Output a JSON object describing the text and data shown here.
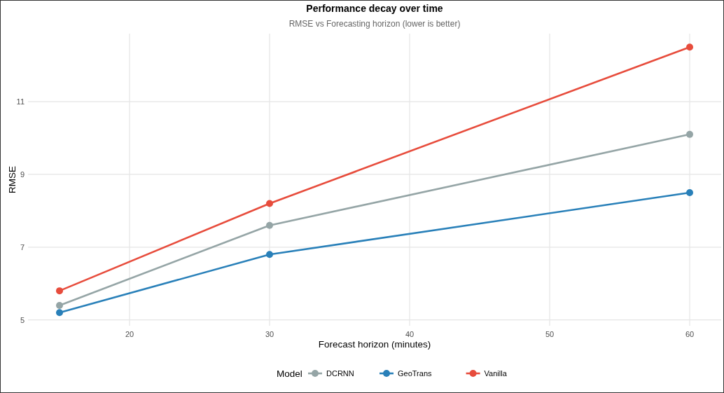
{
  "chart_data": {
    "type": "line",
    "title": "Performance decay over time",
    "subtitle": "RMSE vs Forecasting horizon (lower is better)",
    "xlabel": "Forecast horizon (minutes)",
    "ylabel": "RMSE",
    "legend_title": "Model",
    "x": [
      15,
      30,
      60
    ],
    "series": [
      {
        "name": "DCRNN",
        "color": "#95a5a6",
        "values": [
          5.4,
          7.6,
          10.1
        ]
      },
      {
        "name": "GeoTrans",
        "color": "#2980b9",
        "values": [
          5.2,
          6.8,
          8.5
        ]
      },
      {
        "name": "Vanilla",
        "color": "#e74c3c",
        "values": [
          5.8,
          8.2,
          12.5
        ]
      }
    ],
    "xlim": [
      12.75,
      62.25
    ],
    "xticks": [
      20,
      30,
      40,
      50,
      60
    ],
    "ylim": [
      4.84,
      12.87
    ],
    "yticks": [
      5,
      7,
      9,
      11
    ],
    "grid": true,
    "legend": "bottom",
    "marker": "circle",
    "line_style": "solid"
  }
}
